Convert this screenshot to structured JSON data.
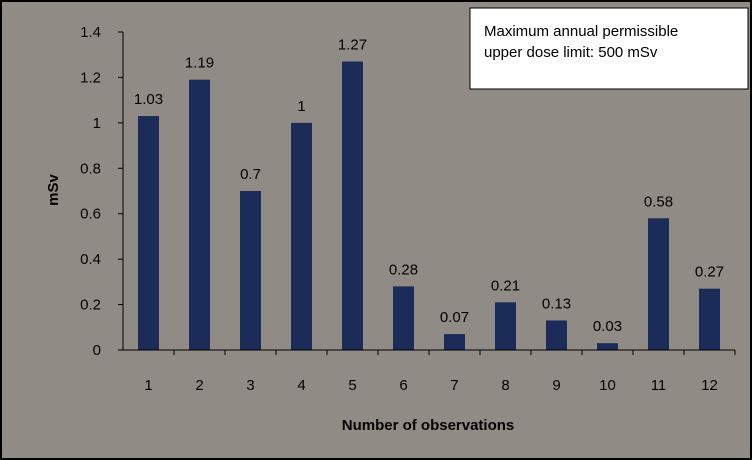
{
  "colors": {
    "plot_background": "#918b85",
    "bar": "#1a2c57",
    "axis": "#000000",
    "note_background": "#ffffff"
  },
  "chart_data": {
    "type": "bar",
    "title": "",
    "xlabel": "Number of observations",
    "ylabel": "mSv",
    "categories": [
      "1",
      "2",
      "3",
      "4",
      "5",
      "6",
      "7",
      "8",
      "9",
      "10",
      "11",
      "12"
    ],
    "values": [
      1.03,
      1.19,
      0.7,
      1,
      1.27,
      0.28,
      0.07,
      0.21,
      0.13,
      0.03,
      0.58,
      0.27
    ],
    "data_labels": [
      "1.03",
      "1.19",
      "0.7",
      "1",
      "1.27",
      "0.28",
      "0.07",
      "0.21",
      "0.13",
      "0.03",
      "0.58",
      "0.27"
    ],
    "ylim": [
      0,
      1.4
    ],
    "yticks": [
      "0",
      "0.2",
      "0.4",
      "0.6",
      "0.8",
      "1",
      "1.2",
      "1.4"
    ],
    "grid": false,
    "legend": "none",
    "annotation": {
      "position": "top-right",
      "lines": [
        "Maximum annual permissible",
        "upper dose limit:  500 mSv"
      ]
    }
  }
}
